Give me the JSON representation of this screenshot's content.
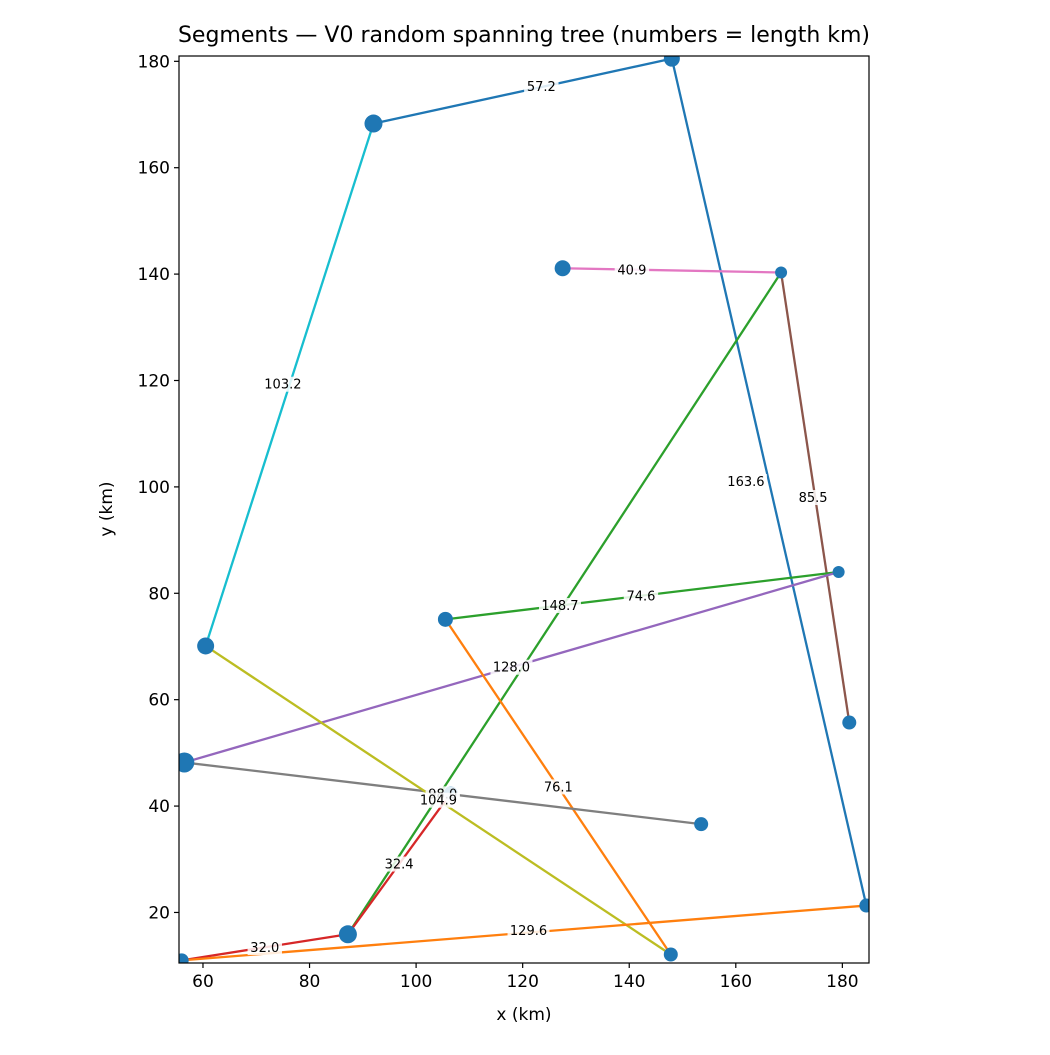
{
  "chart_data": {
    "type": "scatter",
    "title": "Segments — V0 random spanning tree (numbers = length km)",
    "xlabel": "x (km)",
    "ylabel": "y (km)",
    "xlim": [
      55.5,
      185
    ],
    "ylim": [
      10.5,
      181
    ],
    "x_ticks": [
      60,
      80,
      100,
      120,
      140,
      160,
      180
    ],
    "y_ticks": [
      20,
      40,
      60,
      80,
      100,
      120,
      140,
      160,
      180
    ],
    "grid": false,
    "nodes": [
      {
        "x": 92,
        "y": 168.3,
        "size": 9
      },
      {
        "x": 148,
        "y": 180.5,
        "size": 8
      },
      {
        "x": 184.5,
        "y": 21.3,
        "size": 7
      },
      {
        "x": 127.5,
        "y": 141.1,
        "size": 8
      },
      {
        "x": 168.5,
        "y": 140.3,
        "size": 6
      },
      {
        "x": 181.3,
        "y": 55.7,
        "size": 7
      },
      {
        "x": 179.3,
        "y": 84,
        "size": 6
      },
      {
        "x": 105.5,
        "y": 75.1,
        "size": 7.5
      },
      {
        "x": 60.5,
        "y": 70.1,
        "size": 8.5
      },
      {
        "x": 56.5,
        "y": 48.2,
        "size": 10
      },
      {
        "x": 153.5,
        "y": 36.6,
        "size": 7
      },
      {
        "x": 106.5,
        "y": 42.4,
        "size": 7
      },
      {
        "x": 87.2,
        "y": 15.9,
        "size": 9
      },
      {
        "x": 147.8,
        "y": 12.1,
        "size": 7
      },
      {
        "x": 56,
        "y": 11,
        "size": 7
      }
    ],
    "segments": [
      {
        "from": [
          92,
          168.3
        ],
        "to": [
          148,
          180.5
        ],
        "length": "57.2",
        "color": "#1f77b4",
        "label_at": [
          123.5,
          175.3
        ]
      },
      {
        "from": [
          148,
          180.5
        ],
        "to": [
          184.5,
          21.3
        ],
        "length": "163.6",
        "color": "#1f77b4",
        "label_at": [
          161.9,
          101
        ]
      },
      {
        "from": [
          92,
          168.3
        ],
        "to": [
          60.5,
          70.1
        ],
        "length": "103.2",
        "color": "#17becf",
        "label_at": [
          75,
          119.3
        ]
      },
      {
        "from": [
          127.5,
          141.1
        ],
        "to": [
          168.5,
          140.3
        ],
        "length": "40.9",
        "color": "#e377c2",
        "label_at": [
          140.5,
          140.8
        ]
      },
      {
        "from": [
          168.5,
          140.3
        ],
        "to": [
          181.3,
          55.7
        ],
        "length": "85.5",
        "color": "#8c564b",
        "label_at": [
          174.5,
          98
        ]
      },
      {
        "from": [
          168.5,
          140.3
        ],
        "to": [
          87.2,
          15.9
        ],
        "length": "148.7",
        "color": "#2ca02c",
        "label_at": [
          127,
          77.7
        ]
      },
      {
        "from": [
          105.5,
          75.1
        ],
        "to": [
          179.3,
          84
        ],
        "length": "74.6",
        "color": "#2ca02c",
        "label_at": [
          142.2,
          79.5
        ]
      },
      {
        "from": [
          179.3,
          84
        ],
        "to": [
          56.5,
          48.2
        ],
        "length": "128.0",
        "color": "#9467bd",
        "label_at": [
          117.9,
          66.1
        ]
      },
      {
        "from": [
          105.5,
          75.1
        ],
        "to": [
          147.8,
          12.1
        ],
        "length": "76.1",
        "color": "#ff7f0e",
        "label_at": [
          126.7,
          43.6
        ]
      },
      {
        "from": [
          56.5,
          48.2
        ],
        "to": [
          153.5,
          36.6
        ],
        "length": "98.0",
        "color": "#7f7f7f",
        "label_at": [
          105,
          42.3
        ]
      },
      {
        "from": [
          60.5,
          70.1
        ],
        "to": [
          147.8,
          12.1
        ],
        "length": "104.9",
        "color": "#bcbd22",
        "label_at": [
          104.2,
          41.1
        ]
      },
      {
        "from": [
          106.5,
          42.4
        ],
        "to": [
          87.2,
          15.9
        ],
        "length": "32.4",
        "color": "#d62728",
        "label_at": [
          96.8,
          29.1
        ]
      },
      {
        "from": [
          87.2,
          15.9
        ],
        "to": [
          56,
          11
        ],
        "length": "32.0",
        "color": "#d62728",
        "label_at": [
          71.6,
          13.4
        ]
      },
      {
        "from": [
          56,
          11
        ],
        "to": [
          184.5,
          21.3
        ],
        "length": "129.6",
        "color": "#ff7f0e",
        "label_at": [
          121.1,
          16.6
        ]
      }
    ],
    "node_color": "#1f77b4"
  }
}
